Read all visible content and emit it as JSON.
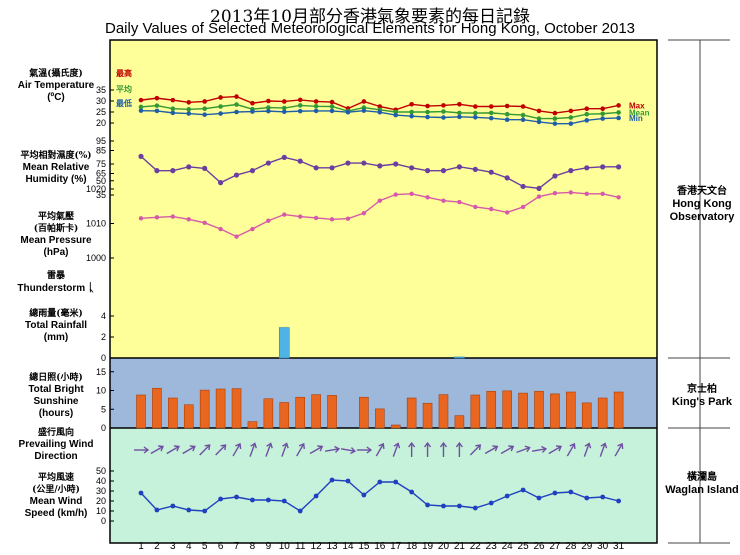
{
  "title_zh": "2013年10月部分香港氣象要素的每日記錄",
  "title_en": "Daily Values of Selected Meteorological Elements for Hong Kong, October 2013",
  "labels": {
    "temp_zh": "氣溫(攝氏度)",
    "temp_en": "Air Temperature",
    "temp_unit": "(ºC)",
    "rh_zh": "平均相對濕度(%)",
    "rh_en": "Mean Relative",
    "rh_en2": "Humidity (%)",
    "pres_zh": "平均氣壓",
    "pres_zh2": "(百帕斯卡)",
    "pres_en": "Mean Pressure",
    "pres_unit": "(hPa)",
    "ts_zh": "雷暴",
    "ts_en": "Thunderstorm",
    "rain_zh": "總雨量(毫米)",
    "rain_en": "Total Rainfall",
    "rain_unit": "(mm)",
    "sun_zh": "總日照(小時)",
    "sun_en": "Total Bright",
    "sun_en2": "Sunshine",
    "sun_unit": "(hours)",
    "wdir_zh": "盛行風向",
    "wdir_en": "Prevailing Wind",
    "wdir_en2": "Direction",
    "wspd_zh": "平均風速",
    "wspd_zh2": "(公里/小時)",
    "wspd_en": "Mean Wind",
    "wspd_en2": "Speed (km/h)",
    "max_zh": "最高",
    "mean_zh": "平均",
    "min_zh": "最低"
  },
  "stations": {
    "hko_zh": "香港天文台",
    "hko_en1": "Hong Kong",
    "hko_en2": "Observatory",
    "kp_zh": "京士柏",
    "kp_en": "King's Park",
    "wi_zh": "橫瀾島",
    "wi_en": "Waglan Island"
  },
  "colors": {
    "upper_bg": "#ffff99",
    "sunshine_bg": "#9eb8dc",
    "wind_bg": "#c6f1da",
    "max": "#c00000",
    "mean": "#339933",
    "min": "#1f5fa8",
    "rh": "#6a3fa0",
    "pressure": "#d65aa9",
    "rain": "#4fb3e6",
    "sunshine": "#e8661f",
    "wind_arrow": "#6f4fa2",
    "wind_speed": "#2040c0"
  },
  "chart_data": {
    "type": "line",
    "days": [
      1,
      2,
      3,
      4,
      5,
      6,
      7,
      8,
      9,
      10,
      11,
      12,
      13,
      14,
      15,
      16,
      17,
      18,
      19,
      20,
      21,
      22,
      23,
      24,
      25,
      26,
      27,
      28,
      29,
      30,
      31
    ],
    "temp_yticks": [
      20,
      25,
      30,
      35
    ],
    "rh_yticks": [
      35,
      50,
      65,
      75,
      85,
      95
    ],
    "pres_yticks": [
      1000,
      1010,
      1020
    ],
    "rain_yticks": [
      0,
      2,
      4
    ],
    "sun_yticks": [
      0,
      5,
      10,
      15
    ],
    "wspd_yticks": [
      0,
      10,
      20,
      30,
      40,
      50
    ],
    "series": [
      {
        "name": "Max",
        "values": [
          30.4,
          31.3,
          30.4,
          29.4,
          29.8,
          31.6,
          32,
          29,
          30,
          29.8,
          30.5,
          29.8,
          29.5,
          26.6,
          29.8,
          27.5,
          26,
          28.5,
          27.7,
          28,
          28.5,
          27.5,
          27.5,
          27.7,
          27.5,
          25.5,
          24.5,
          25.5,
          26.5,
          26.5,
          28
        ]
      },
      {
        "name": "Mean",
        "values": [
          27.3,
          27.9,
          26.5,
          26.2,
          26.5,
          27.5,
          28.4,
          26.3,
          27,
          26.8,
          28,
          27.6,
          27.5,
          25.4,
          27,
          26,
          25,
          25,
          25,
          25.2,
          24.6,
          24.5,
          24.6,
          24,
          23.6,
          22,
          22,
          22.5,
          24,
          24.2,
          24.8
        ]
      },
      {
        "name": "Min",
        "values": [
          25.6,
          25.5,
          24.6,
          24.3,
          23.8,
          24.3,
          25,
          25.2,
          25.4,
          25.1,
          25.4,
          25.5,
          25.5,
          24.9,
          25.6,
          24.9,
          23.6,
          23.1,
          22.7,
          22.5,
          22.8,
          22.6,
          22.2,
          21.5,
          21.5,
          20.5,
          19.7,
          19.7,
          21.2,
          22,
          22.3
        ]
      },
      {
        "name": "Mean Relative Humidity",
        "values": [
          83,
          68,
          68,
          72,
          63,
          48,
          56,
          68,
          76,
          82,
          78,
          71,
          71,
          76,
          76,
          73,
          75,
          71,
          68,
          68,
          72,
          62,
          59,
          53,
          44,
          42,
          55,
          68,
          71,
          72,
          72
        ]
      },
      {
        "name": "Mean Pressure",
        "values": [
          1011.5,
          1011.8,
          1012,
          1011.2,
          1010.2,
          1008.4,
          1006.2,
          1008.4,
          1010.8,
          1012.6,
          1012,
          1011.6,
          1011.2,
          1011.4,
          1013,
          1016.6,
          1018.4,
          1018.6,
          1017.6,
          1016.6,
          1016.2,
          1014.8,
          1014.2,
          1013.2,
          1014.8,
          1017.8,
          1018.8,
          1019,
          1018.6,
          1018.6,
          1017.6
        ]
      },
      {
        "name": "Total Rainfall",
        "values": [
          0,
          0,
          0,
          0,
          0,
          0,
          0,
          0,
          0,
          2.9,
          0,
          0,
          0,
          0,
          0,
          0,
          0,
          0,
          0,
          0,
          0.1,
          0,
          0,
          0,
          0,
          0,
          0,
          0,
          0,
          0,
          0
        ]
      },
      {
        "name": "Total Bright Sunshine",
        "values": [
          8.8,
          10.6,
          8,
          6.2,
          10.1,
          10.4,
          10.5,
          1.7,
          7.8,
          6.8,
          8.2,
          8.9,
          8.7,
          0,
          8.2,
          5.1,
          0.8,
          8,
          6.6,
          8.9,
          3.3,
          8.8,
          9.8,
          9.9,
          9.3,
          9.8,
          9.1,
          9.6,
          6.7,
          8,
          9.6
        ]
      },
      {
        "name": "Mean Wind Speed",
        "values": [
          28,
          11,
          15,
          11,
          10,
          22,
          24,
          21,
          21,
          20,
          10,
          25,
          41,
          40,
          26,
          39,
          39,
          29,
          16,
          15,
          15,
          13,
          18,
          25,
          31,
          23,
          28,
          29,
          23,
          24,
          20
        ]
      }
    ],
    "wind_direction_deg": [
      270,
      240,
      240,
      240,
      225,
      225,
      210,
      200,
      200,
      200,
      210,
      240,
      260,
      280,
      270,
      210,
      200,
      180,
      180,
      180,
      180,
      225,
      240,
      240,
      250,
      260,
      240,
      210,
      200,
      200,
      210
    ],
    "thunderstorm_days": []
  }
}
